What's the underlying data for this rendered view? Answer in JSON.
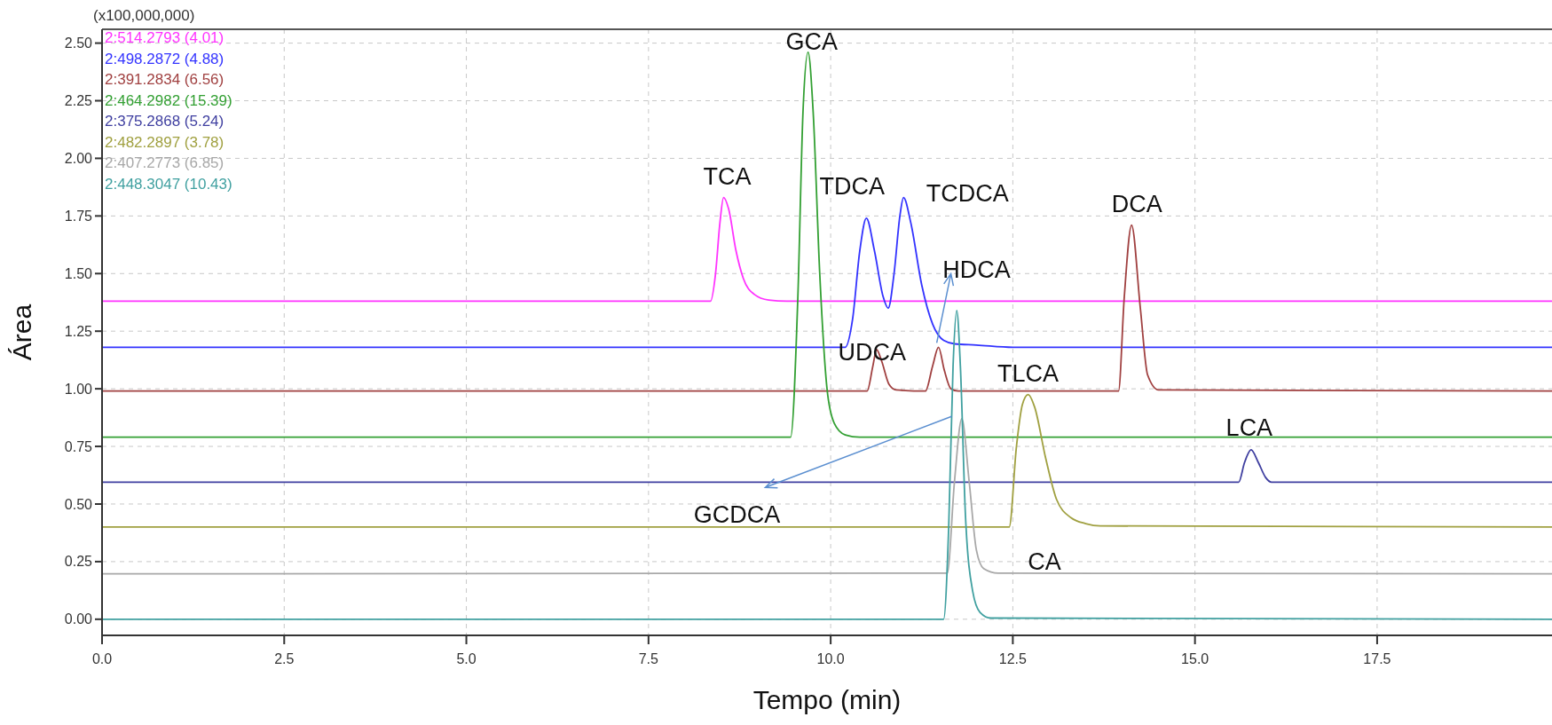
{
  "chart_data": {
    "type": "line",
    "xlabel": "Tempo (min)",
    "ylabel": "Área",
    "xlim": [
      0,
      19.9
    ],
    "ylim": [
      -0.07,
      2.56
    ],
    "xticks": [
      {
        "value": 0,
        "label": "0.0"
      },
      {
        "value": 2.5,
        "label": "2.5"
      },
      {
        "value": 5,
        "label": "5.0"
      },
      {
        "value": 7.5,
        "label": "7.5"
      },
      {
        "value": 10,
        "label": "10.0"
      },
      {
        "value": 12.5,
        "label": "12.5"
      },
      {
        "value": 15,
        "label": "15.0"
      },
      {
        "value": 17.5,
        "label": "17.5"
      }
    ],
    "yticks": [
      {
        "value": 0,
        "label": "0.00"
      },
      {
        "value": 0.25,
        "label": "0.25"
      },
      {
        "value": 0.5,
        "label": "0.50"
      },
      {
        "value": 0.75,
        "label": "0.75"
      },
      {
        "value": 1,
        "label": "1.00"
      },
      {
        "value": 1.25,
        "label": "1.25"
      },
      {
        "value": 1.5,
        "label": "1.50"
      },
      {
        "value": 1.75,
        "label": "1.75"
      },
      {
        "value": 2,
        "label": "2.00"
      },
      {
        "value": 2.25,
        "label": "2.25"
      },
      {
        "value": 2.5,
        "label": "2.50"
      }
    ],
    "grid": true,
    "legend": "top left",
    "line_style": "solid",
    "series": [
      {
        "name": "2:514.2793 (4.01)",
        "color": "#ff33ff",
        "x": [
          0,
          8.35,
          8.42,
          8.48,
          8.53,
          8.6,
          8.7,
          8.8,
          8.95,
          9.15,
          9.4,
          19.9
        ],
        "values": [
          1.38,
          1.38,
          1.5,
          1.72,
          1.83,
          1.78,
          1.6,
          1.48,
          1.41,
          1.385,
          1.38,
          1.38
        ]
      },
      {
        "name": "2:498.2872 (4.88)",
        "color": "#3333ff",
        "x": [
          0,
          10.2,
          10.3,
          10.4,
          10.49,
          10.6,
          10.72,
          10.79,
          10.87,
          10.95,
          11.0,
          11.1,
          11.25,
          11.4,
          11.55,
          11.7,
          12.0,
          12.5,
          19.9
        ],
        "values": [
          1.18,
          1.18,
          1.3,
          1.6,
          1.74,
          1.6,
          1.4,
          1.35,
          1.5,
          1.75,
          1.83,
          1.72,
          1.45,
          1.28,
          1.21,
          1.195,
          1.19,
          1.18,
          1.18
        ]
      },
      {
        "name": "2:391.2834 (6.56)",
        "color": "#a04040",
        "x": [
          0,
          10.5,
          10.58,
          10.63,
          10.7,
          10.8,
          10.9,
          11.3,
          11.4,
          11.48,
          11.56,
          11.65,
          11.75,
          13.95,
          14.03,
          14.13,
          14.25,
          14.35,
          14.5,
          19.9
        ],
        "values": [
          0.99,
          0.99,
          1.1,
          1.17,
          1.12,
          1.02,
          0.995,
          0.99,
          1.1,
          1.18,
          1.08,
          1.0,
          0.99,
          0.99,
          1.4,
          1.71,
          1.35,
          1.06,
          0.995,
          0.99
        ]
      },
      {
        "name": "2:464.2982 (15.39)",
        "color": "#33a033",
        "x": [
          0,
          9.45,
          9.55,
          9.62,
          9.69,
          9.76,
          9.85,
          9.95,
          10.05,
          10.2,
          10.4,
          19.9
        ],
        "values": [
          0.79,
          0.79,
          1.4,
          2.2,
          2.46,
          2.2,
          1.5,
          1.0,
          0.85,
          0.8,
          0.79,
          0.79
        ]
      },
      {
        "name": "2:375.2868 (5.24)",
        "color": "#3f3fa0",
        "x": [
          0,
          15.6,
          15.68,
          15.77,
          15.87,
          15.97,
          16.05,
          19.9
        ],
        "values": [
          0.595,
          0.595,
          0.68,
          0.735,
          0.68,
          0.615,
          0.595,
          0.595
        ]
      },
      {
        "name": "2:482.2897 (3.78)",
        "color": "#a0a040",
        "x": [
          0,
          12.45,
          12.55,
          12.63,
          12.71,
          12.8,
          12.95,
          13.1,
          13.3,
          13.5,
          13.7,
          19.9
        ],
        "values": [
          0.4,
          0.4,
          0.75,
          0.93,
          0.975,
          0.92,
          0.7,
          0.52,
          0.44,
          0.415,
          0.405,
          0.4
        ]
      },
      {
        "name": "2:407.2773 (6.85)",
        "color": "#a8a8a8",
        "x": [
          0,
          11.6,
          11.7,
          11.8,
          11.9,
          12.0,
          12.1,
          12.3,
          19.9
        ],
        "values": [
          0.197,
          0.2,
          0.6,
          0.87,
          0.6,
          0.3,
          0.22,
          0.2,
          0.197
        ]
      },
      {
        "name": "2:448.3047 (10.43)",
        "color": "#40a0a0",
        "x": [
          0,
          11.55,
          11.62,
          11.68,
          11.73,
          11.78,
          11.85,
          11.95,
          12.05,
          12.2,
          19.9
        ],
        "values": [
          0,
          0,
          0.4,
          1.1,
          1.34,
          1.1,
          0.45,
          0.12,
          0.03,
          0.005,
          0
        ]
      }
    ],
    "annotations": [
      "(x100,000,000)",
      {
        "text": "TCA",
        "x": 8.53,
        "y": 1.83
      },
      {
        "text": "GCA",
        "x": 9.69,
        "y": 2.46
      },
      {
        "text": "TDCA",
        "x": 10.49,
        "y": 1.74
      },
      {
        "text": "TCDCA",
        "x": 11.0,
        "y": 1.83
      },
      {
        "text": "HDCA",
        "x": 11.48,
        "y": 1.18
      },
      {
        "text": "UDCA",
        "x": 10.63,
        "y": 1.17
      },
      {
        "text": "DCA",
        "x": 14.13,
        "y": 1.71
      },
      {
        "text": "TLCA",
        "x": 12.71,
        "y": 0.975
      },
      {
        "text": "LCA",
        "x": 15.77,
        "y": 0.735
      },
      {
        "text": "GCDCA",
        "x": 11.66,
        "y": 0.88
      },
      "CA"
    ]
  }
}
